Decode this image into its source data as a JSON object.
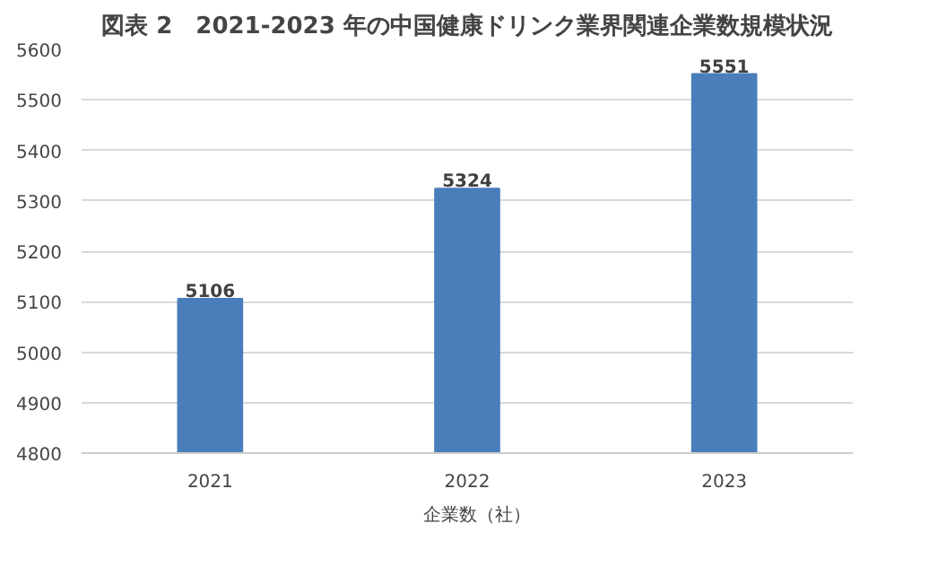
{
  "chart_data": {
    "type": "bar",
    "title": "図表 2　2021-2023 年の中国健康ドリンク業界関連企業数規模状況",
    "categories": [
      "2021",
      "2022",
      "2023"
    ],
    "series": [
      {
        "name": "企業数（社）",
        "color": "#4a7ebb",
        "values": [
          5106,
          5324,
          5551
        ]
      }
    ],
    "ylim": [
      4800,
      5600
    ],
    "yticks": [
      4800,
      4900,
      5000,
      5100,
      5200,
      5300,
      5400,
      5500,
      5600
    ],
    "grid": "y",
    "legend": "bottom",
    "data_labels": true
  }
}
